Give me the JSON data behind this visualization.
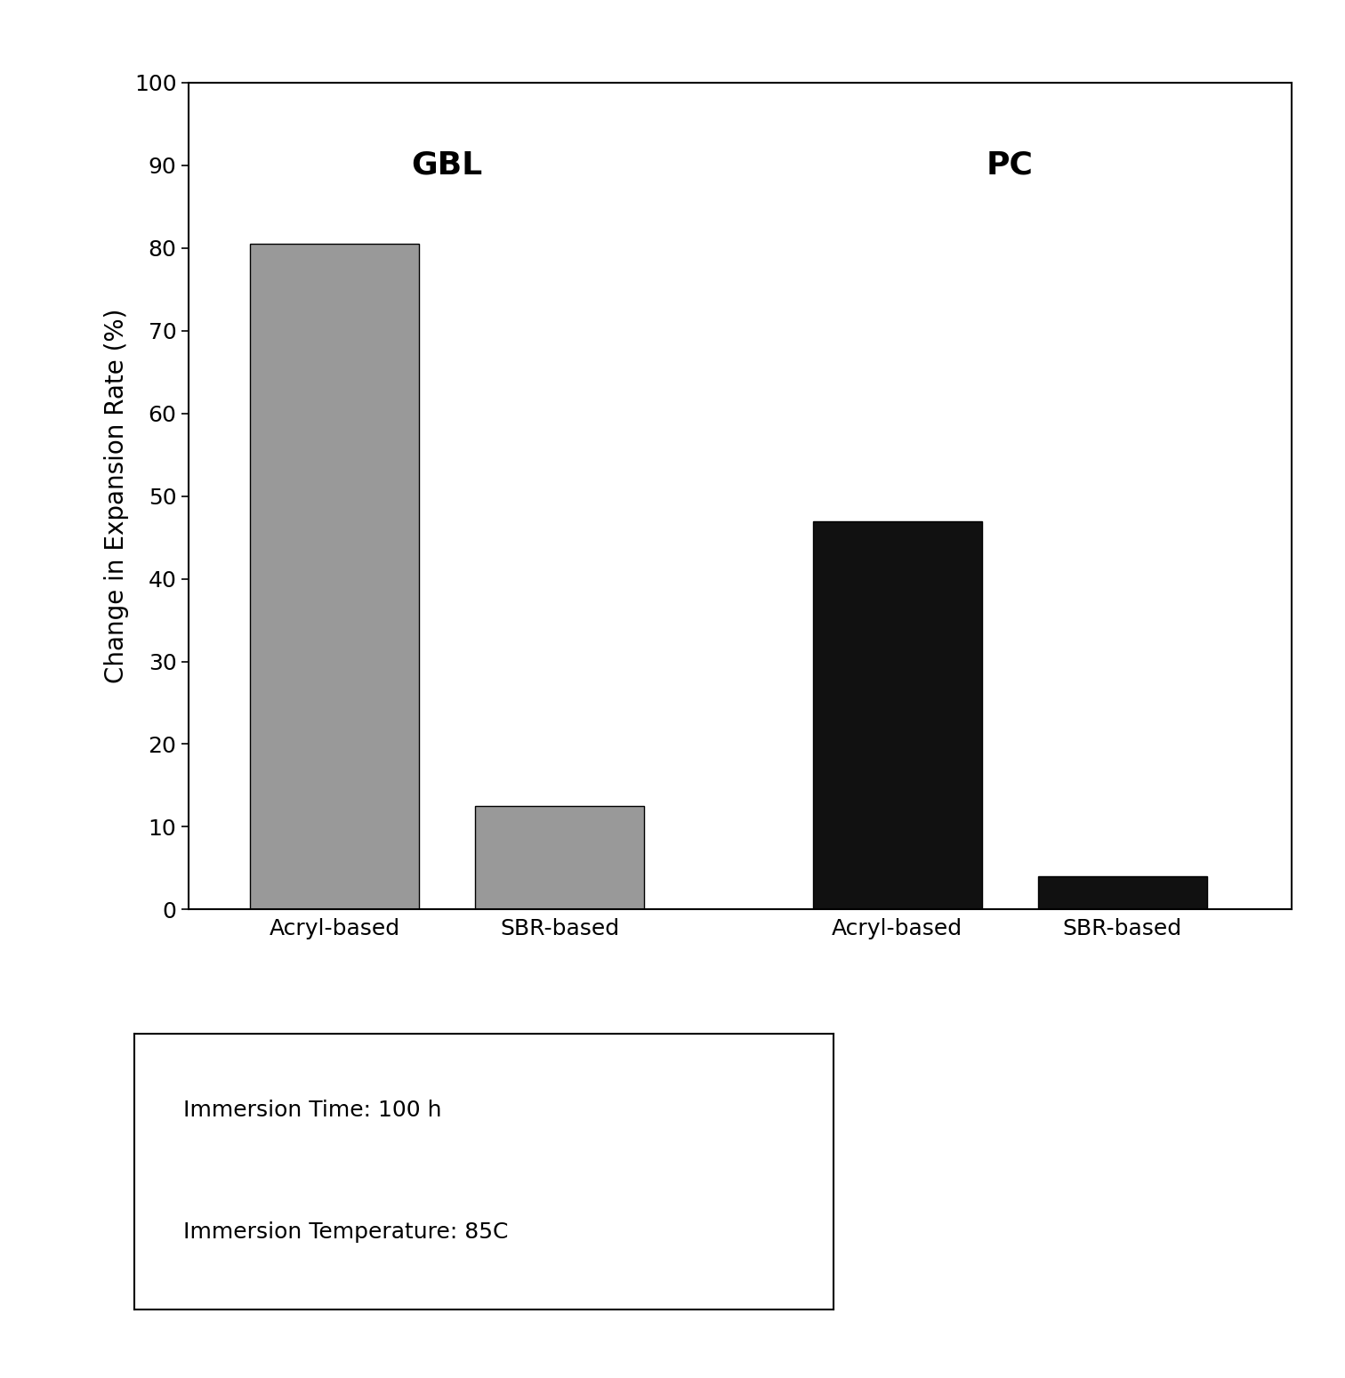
{
  "categories": [
    "Acryl-based",
    "SBR-based",
    "Acryl-based",
    "SBR-based"
  ],
  "values": [
    80.5,
    12.5,
    47.0,
    4.0
  ],
  "bar_colors_gbl": [
    "#999999",
    "#999999"
  ],
  "bar_colors_pc": [
    "#111111",
    "#111111"
  ],
  "ylabel": "Change in Expansion Rate (%)",
  "ylim": [
    0,
    100
  ],
  "yticks": [
    0,
    10,
    20,
    30,
    40,
    50,
    60,
    70,
    80,
    90,
    100
  ],
  "gbl_label": "GBL",
  "pc_label": "PC",
  "annotation_line1": "Immersion Time: 100 h",
  "annotation_line2": "Immersion Temperature: 85C",
  "background_color": "#ffffff",
  "group_label_fontsize": 26,
  "axis_label_fontsize": 20,
  "tick_fontsize": 18,
  "annotation_fontsize": 18
}
